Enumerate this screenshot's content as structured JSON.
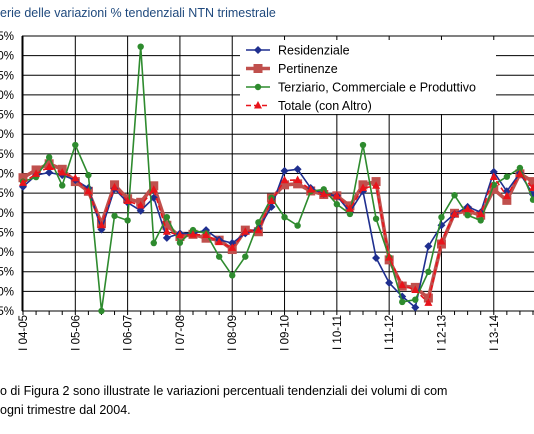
{
  "chart_title": "erie delle variazioni % tendenziali NTN trimestrale",
  "caption": {
    "line1": "o di Figura 2 sono illustrate le variazioni percentuali tendenziali dei volumi di com",
    "line2": "ogni trimestre dal 2004."
  },
  "colors": {
    "residenziale": "#1f2f8f",
    "pertinenze": "#c0504d",
    "terziario": "#2e8b2e",
    "totale": "#e8141b",
    "grid": "#000000"
  },
  "chart_data": {
    "type": "line",
    "title": "",
    "xlabel": "",
    "ylabel": "",
    "ylim": [
      -50,
      35
    ],
    "grid": true,
    "legend_position": "top-right",
    "y_tick_labels": [
      "5%",
      "0%",
      "5%",
      "0%",
      "5%",
      "0%",
      "5%",
      "0%",
      "5%",
      "0%",
      "5%",
      "0%",
      "5%",
      "0%",
      "5%"
    ],
    "x_tick_labels": [
      "I 04-05",
      "I 05-06",
      "I 06-07",
      "I 07-08",
      "I 08-09",
      "I 09-10",
      "I 10-11",
      "I 11-12",
      "I 12-13",
      "I 13-14"
    ],
    "x_tick_positions": [
      0,
      4,
      8,
      12,
      16,
      20,
      24,
      28,
      32,
      36
    ],
    "x": [
      0,
      1,
      2,
      3,
      4,
      5,
      6,
      7,
      8,
      9,
      10,
      11,
      12,
      13,
      14,
      15,
      16,
      17,
      18,
      19,
      20,
      21,
      22,
      23,
      24,
      25,
      26,
      27,
      28,
      29,
      30,
      31,
      32,
      33,
      34,
      35,
      36,
      37,
      38,
      39
    ],
    "series": [
      {
        "name": "Residenziale",
        "key": "residenziale",
        "marker": "diamond",
        "values": [
          -11.6,
          -8,
          -7.2,
          -8,
          -9.5,
          -12,
          -24.8,
          -12.2,
          -16.5,
          -19,
          -15,
          -27.4,
          -26,
          -26,
          -25,
          -28,
          -29,
          -26,
          -24.5,
          -17.8,
          -6.7,
          -6.2,
          -12,
          -13.8,
          -14.4,
          -19.4,
          -13,
          -33.6,
          -41.3,
          -45.5,
          -48.9,
          -30,
          -23.5,
          -20,
          -17.8,
          -19.5,
          -7,
          -13,
          -7.4,
          -14
        ]
      },
      {
        "name": "Pertinenze",
        "key": "pertinenze",
        "marker": "square",
        "values": [
          -8.8,
          -6.4,
          -4.5,
          -6.2,
          -10,
          -13,
          -23,
          -11,
          -15.3,
          -16.4,
          -11.3,
          -23.5,
          -27,
          -26.3,
          -27.5,
          -28.1,
          -31,
          -25,
          -25.5,
          -15.1,
          -11,
          -10.7,
          -12.9,
          -14,
          -14.4,
          -17.5,
          -11,
          -10,
          -34.2,
          -42.3,
          -42.7,
          -46,
          -29.3,
          -19.8,
          -19.1,
          -20.4,
          -12.4,
          -15.8,
          -7.6,
          -10
        ]
      },
      {
        "name": "Terziario, Commerciale e Produttivo",
        "key": "terziario",
        "marker": "circle",
        "values": [
          -10,
          -8.6,
          -2.5,
          -11.2,
          1.3,
          -8,
          -50,
          -20.6,
          -22,
          31.7,
          -29,
          -21,
          -28.9,
          -25,
          -26,
          -33.2,
          -39,
          -33.2,
          -22.6,
          -15,
          -21,
          -23.6,
          -13,
          -12.4,
          -17,
          -20,
          1.3,
          -21.5,
          -33.4,
          -47.2,
          -46.5,
          -37.9,
          -21,
          -14.2,
          -20.4,
          -22,
          -11,
          -8.5,
          -5.8,
          -15.6
        ]
      },
      {
        "name": "Totale (con Altro)",
        "key": "totale",
        "marker": "triangle",
        "values": [
          -10.4,
          -7.6,
          -5.5,
          -7.2,
          -9,
          -13,
          -23.5,
          -11.8,
          -16,
          -17.4,
          -12.5,
          -25.5,
          -26.5,
          -26.4,
          -26.5,
          -28.7,
          -30.5,
          -25.5,
          -25,
          -16,
          -9.6,
          -9.5,
          -12.5,
          -13.9,
          -14.4,
          -18.4,
          -12,
          -11.3,
          -33.5,
          -42,
          -43.5,
          -47.5,
          -28.5,
          -20,
          -18.5,
          -20,
          -8.6,
          -14.5,
          -7.7,
          -12
        ]
      }
    ]
  }
}
